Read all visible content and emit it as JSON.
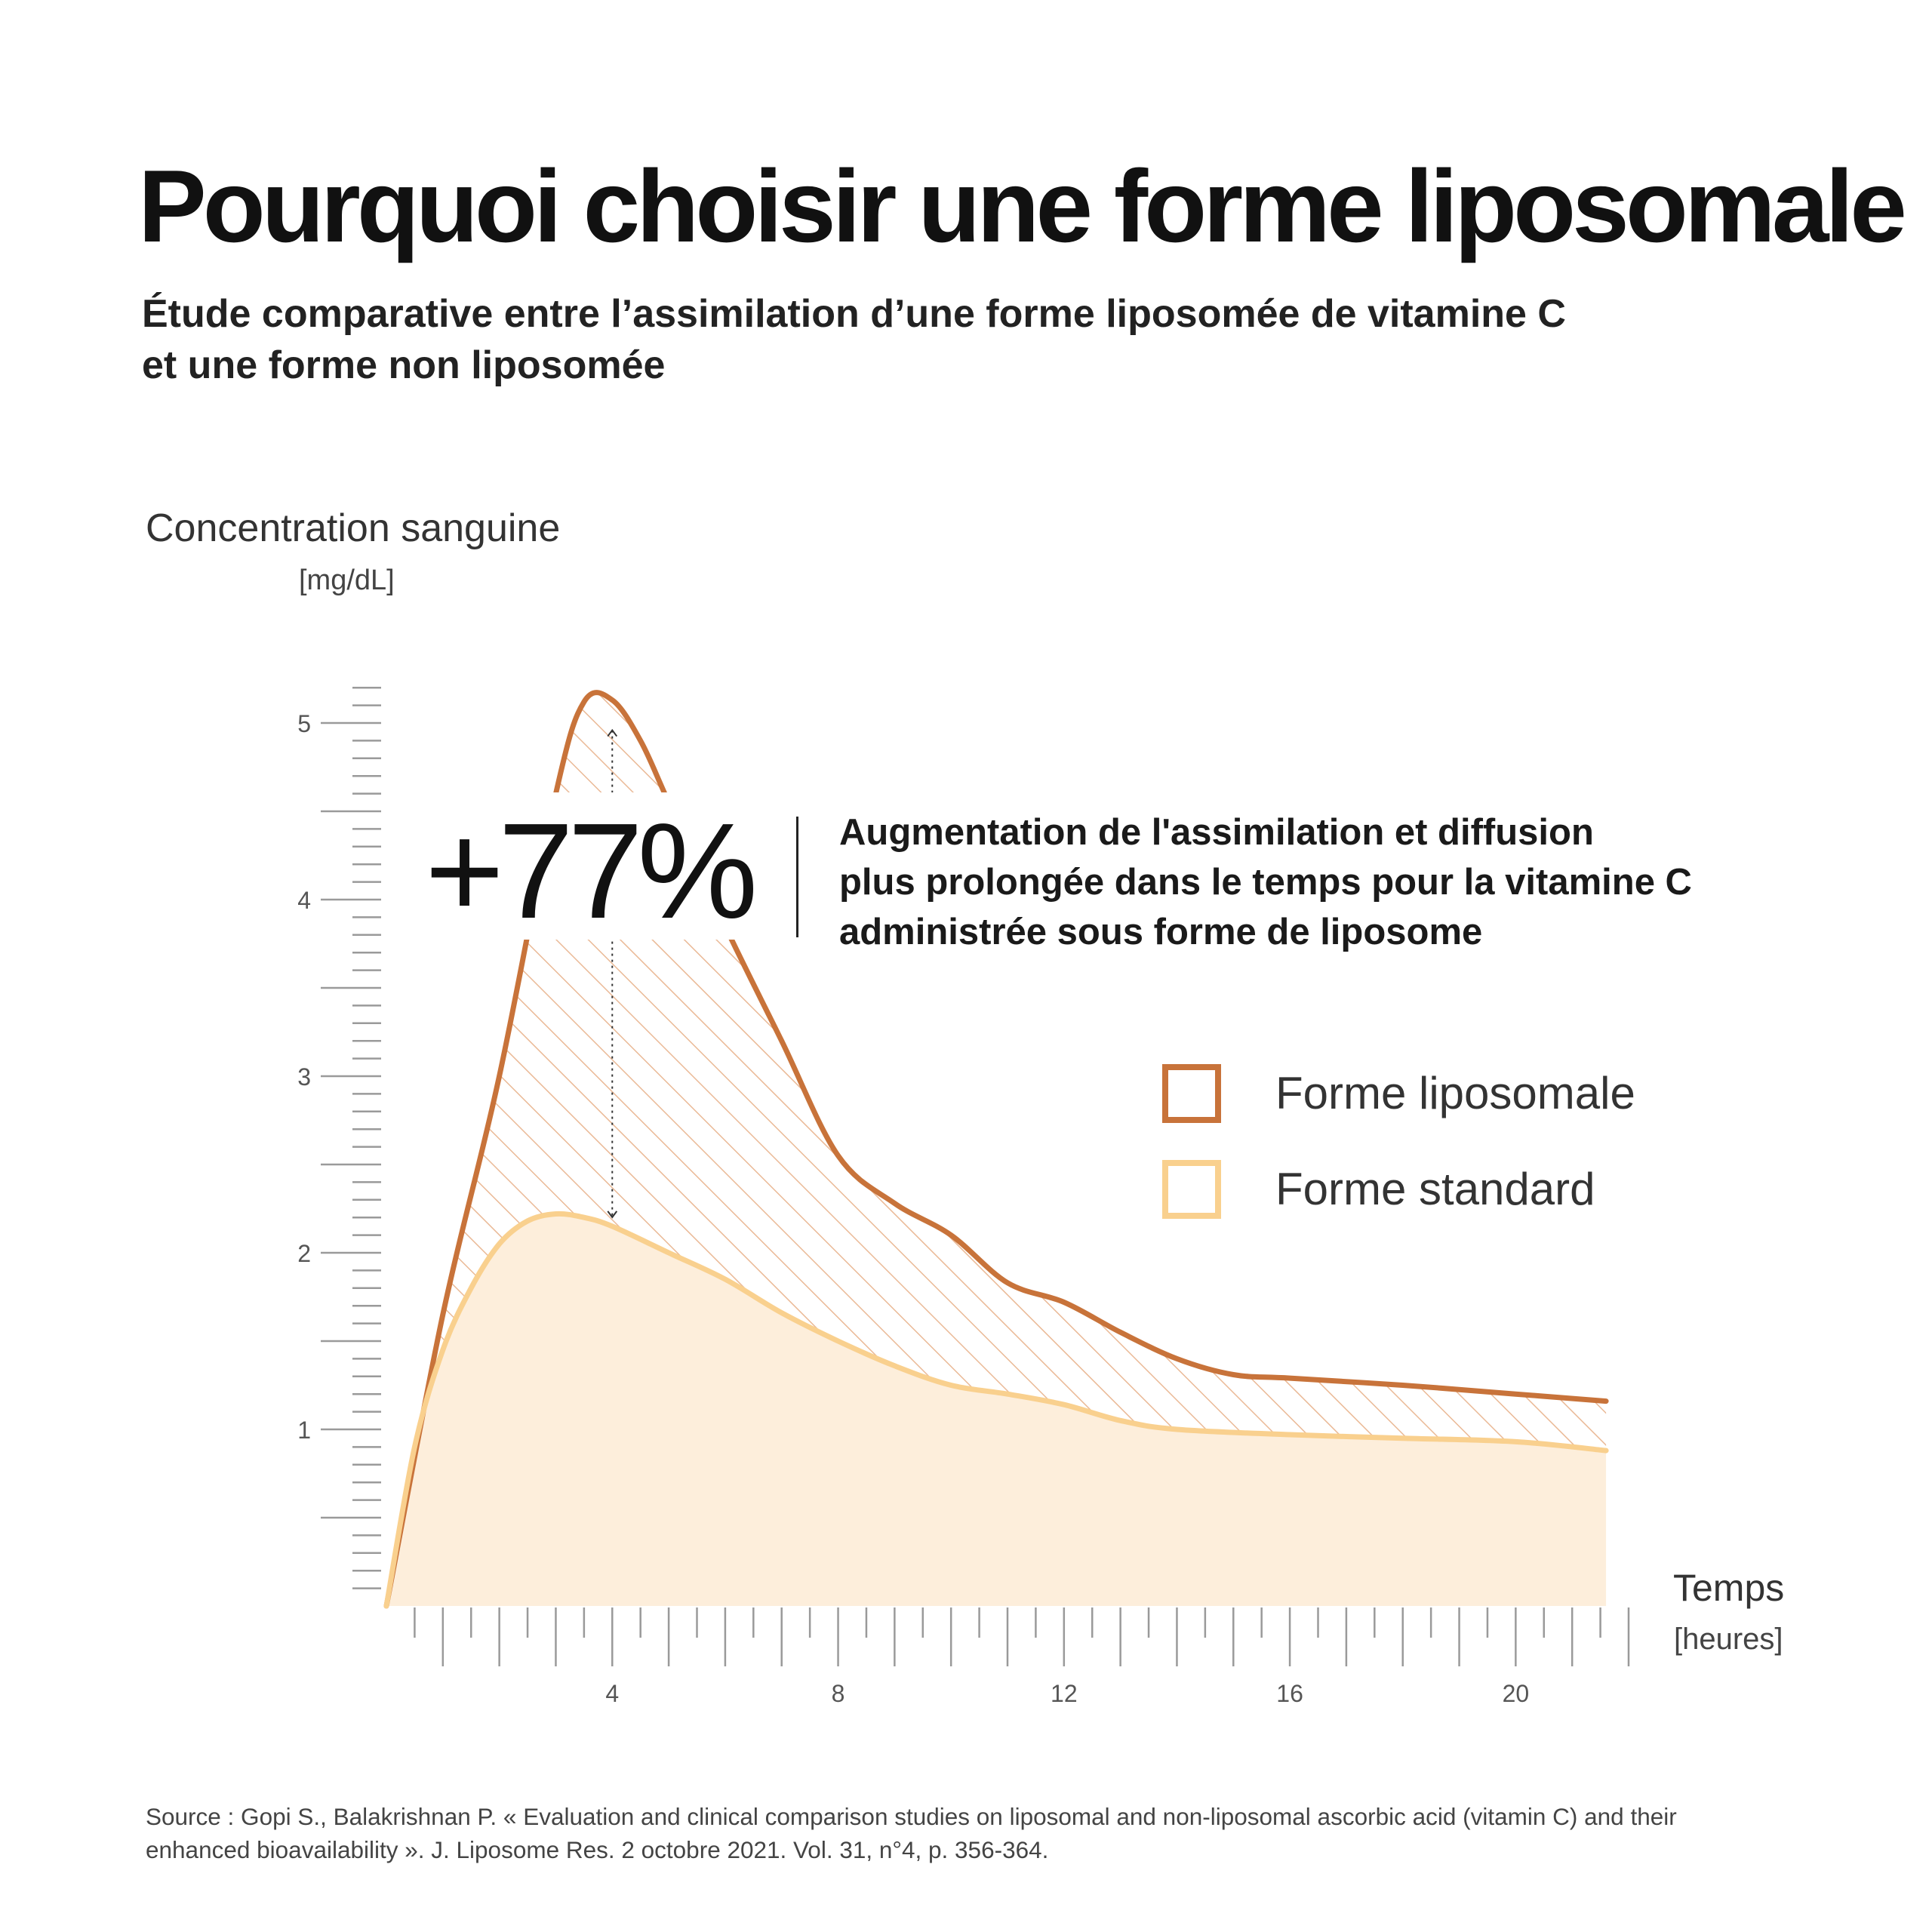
{
  "title": "Pourquoi choisir une forme liposomale",
  "subtitle": {
    "line1": "Étude comparative entre l’assimilation d’une forme liposomée de vitamine C",
    "line2": "et une forme non liposomée"
  },
  "callout": {
    "value": "+77%",
    "line1": "Augmentation de l'assimilation et diffusion",
    "line2": "plus prolongée dans le temps pour la vitamine C",
    "line3": "administrée sous forme de liposome"
  },
  "source": {
    "line1": "Source : Gopi S., Balakrishnan P. « Evaluation and clinical comparison studies on liposomal and non-liposomal ascorbic acid (vitamin C) and their",
    "line2": "enhanced bioavailability ». J. Liposome Res. 2 octobre 2021. Vol. 31, n°4, p. 356-364."
  },
  "colors": {
    "liposomal": "#c8733a",
    "standard": "#f9d08e",
    "standard_fill": "#fdeedb",
    "hatch": "#eab996"
  },
  "chart_data": {
    "type": "area",
    "ylabel": "Concentration sanguine",
    "yunit": "[mg/dL]",
    "xlabel": "Temps",
    "xunit": "[heures]",
    "xlim": [
      0,
      22
    ],
    "ylim": [
      0,
      5.3
    ],
    "x_ticks": [
      4,
      8,
      12,
      16,
      20
    ],
    "y_ticks": [
      1,
      2,
      3,
      4,
      5
    ],
    "grid": false,
    "legend_position": "right",
    "series": [
      {
        "name": "Forme liposomale",
        "x": [
          0,
          1,
          2,
          3,
          3.5,
          4,
          4.5,
          5,
          6,
          7,
          8,
          9,
          10,
          11,
          12,
          13,
          14,
          15,
          16,
          18,
          20,
          21.6
        ],
        "y": [
          0,
          1.65,
          3.0,
          4.6,
          5.12,
          5.13,
          4.9,
          4.55,
          3.85,
          3.2,
          2.55,
          2.28,
          2.1,
          1.83,
          1.72,
          1.55,
          1.4,
          1.31,
          1.29,
          1.25,
          1.2,
          1.16
        ]
      },
      {
        "name": "Forme standard",
        "x": [
          0,
          0.5,
          1,
          1.5,
          2,
          2.5,
          3,
          3.5,
          4,
          5,
          6,
          7,
          8,
          9,
          10,
          11,
          12,
          13,
          14,
          16,
          18,
          20,
          21.6
        ],
        "y": [
          0,
          0.9,
          1.45,
          1.8,
          2.05,
          2.18,
          2.22,
          2.2,
          2.15,
          2.0,
          1.85,
          1.66,
          1.5,
          1.36,
          1.25,
          1.2,
          1.14,
          1.05,
          1.0,
          0.97,
          0.95,
          0.93,
          0.88
        ]
      }
    ]
  }
}
